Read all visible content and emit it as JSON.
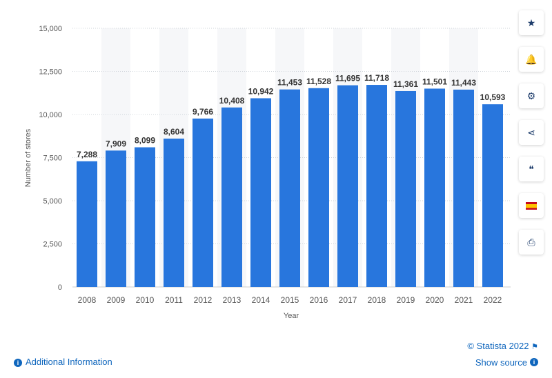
{
  "chart_data": {
    "type": "bar",
    "categories": [
      "2008",
      "2009",
      "2010",
      "2011",
      "2012",
      "2013",
      "2014",
      "2015",
      "2016",
      "2017",
      "2018",
      "2019",
      "2020",
      "2021",
      "2022"
    ],
    "values": [
      7288,
      7909,
      8099,
      8604,
      9766,
      10408,
      10942,
      11453,
      11528,
      11695,
      11718,
      11361,
      11501,
      11443,
      10593
    ],
    "value_labels": [
      "7,288",
      "7,909",
      "8,099",
      "8,604",
      "9,766",
      "10,408",
      "10,942",
      "11,453",
      "11,528",
      "11,695",
      "11,718",
      "11,361",
      "11,501",
      "11,443",
      "10,593"
    ],
    "xlabel": "Year",
    "ylabel": "Number of stores",
    "ylim": [
      0,
      15000
    ],
    "yticks": [
      0,
      2500,
      5000,
      7500,
      10000,
      12500,
      15000
    ],
    "ytick_labels": [
      "0",
      "2,500",
      "5,000",
      "7,500",
      "10,000",
      "12,500",
      "15,000"
    ],
    "grid": true,
    "bar_color": "#2876dd"
  },
  "sidebar": [
    {
      "icon": "star-icon",
      "glyph": "★"
    },
    {
      "icon": "bell-icon",
      "glyph": "🔔"
    },
    {
      "icon": "gear-icon",
      "glyph": "⚙"
    },
    {
      "icon": "share-icon",
      "glyph": "⋖"
    },
    {
      "icon": "quote-icon",
      "glyph": "❝"
    },
    {
      "icon": "spain-flag-icon",
      "glyph": ""
    },
    {
      "icon": "print-icon",
      "glyph": "⎙"
    }
  ],
  "footer": {
    "additional_info": "Additional Information",
    "copyright": "© Statista 2022",
    "show_source": "Show source"
  }
}
